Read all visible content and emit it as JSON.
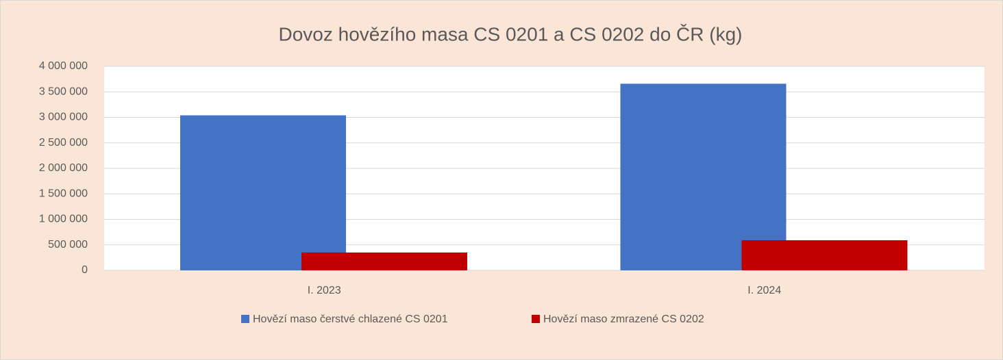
{
  "chart_data": {
    "type": "bar",
    "title": "Dovoz hovězího masa CS 0201 a CS 0202 do ČR (kg)",
    "categories": [
      "I. 2023",
      "I. 2024"
    ],
    "series": [
      {
        "name": "Hovězí maso čerstvé chlazené CS 0201",
        "color": "#4472c4",
        "values": [
          3040000,
          3660000
        ]
      },
      {
        "name": "Hovězí maso zmrazené CS 0202",
        "color": "#c00000",
        "values": [
          350000,
          590000
        ]
      }
    ],
    "ylim": [
      0,
      4000000
    ],
    "yticks": [
      0,
      {
        "value": 500000,
        "label": "500 000"
      },
      {
        "value": 1000000,
        "label": "1 000 000"
      },
      {
        "value": 1500000,
        "label": "1 500 000"
      },
      {
        "value": 2000000,
        "label": "2 000 000"
      },
      {
        "value": 2500000,
        "label": "2 500 000"
      },
      {
        "value": 3000000,
        "label": "3 000 000"
      },
      {
        "value": 3500000,
        "label": "3 500 000"
      },
      {
        "value": 4000000,
        "label": "4 000 000"
      }
    ],
    "grid": true,
    "legend": "bottom"
  }
}
